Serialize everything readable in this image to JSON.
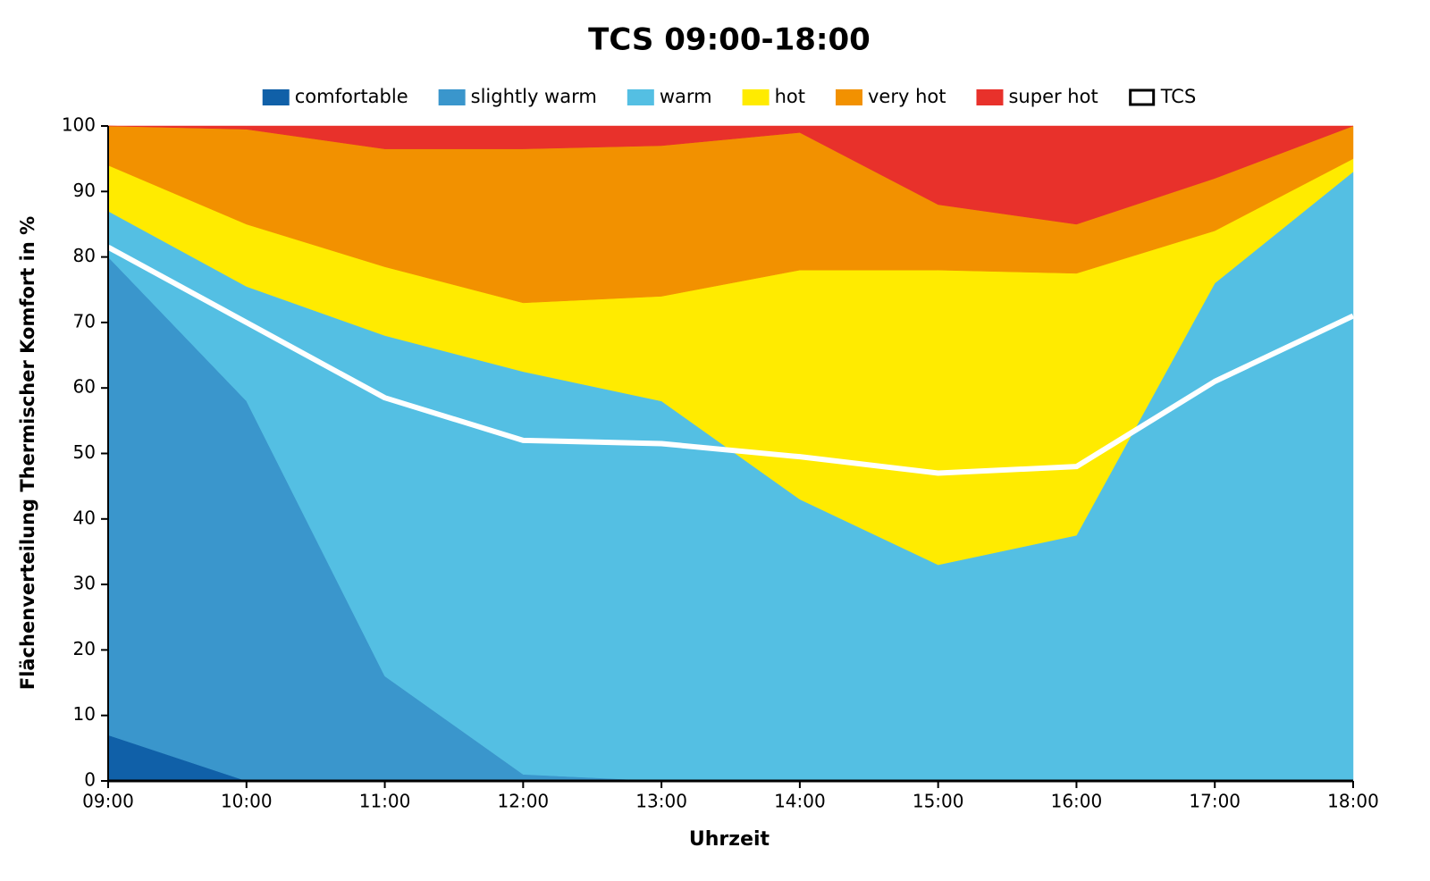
{
  "chart_data": {
    "type": "stacked_area",
    "title": "TCS 09:00-18:00",
    "xlabel": "Uhrzeit",
    "ylabel": "Flächenverteilung Thermischer Komfort in %",
    "categories": [
      "09:00",
      "10:00",
      "11:00",
      "12:00",
      "13:00",
      "14:00",
      "15:00",
      "16:00",
      "17:00",
      "18:00"
    ],
    "series": [
      {
        "name": "comfortable",
        "color": "#1060a8",
        "values": [
          7,
          0,
          0,
          0,
          0,
          0,
          0,
          0,
          0,
          0
        ]
      },
      {
        "name": "slightly warm",
        "color": "#3a96cc",
        "values": [
          73,
          58,
          16,
          1,
          0,
          0,
          0,
          0,
          0,
          0
        ]
      },
      {
        "name": "warm",
        "color": "#54bfe3",
        "values": [
          7,
          17.5,
          52,
          61.5,
          58,
          43,
          33,
          37.5,
          76,
          93
        ]
      },
      {
        "name": "hot",
        "color": "#ffeb00",
        "values": [
          7,
          9.5,
          10.5,
          10.5,
          16,
          35,
          45,
          40,
          8,
          2
        ]
      },
      {
        "name": "very hot",
        "color": "#f29100",
        "values": [
          6,
          14.5,
          18,
          23.5,
          23,
          21,
          10,
          7.5,
          8,
          5
        ]
      },
      {
        "name": "super hot",
        "color": "#e8312b",
        "values": [
          0,
          0.5,
          3.5,
          3.5,
          3,
          1,
          12,
          15,
          8,
          0
        ]
      },
      {
        "name": "TCS",
        "color": "#ffffff",
        "type": "line",
        "values": [
          81.5,
          70,
          58.5,
          52,
          51.5,
          49.5,
          47,
          48,
          61,
          71
        ]
      }
    ],
    "ylim": [
      0,
      100
    ],
    "yticks": [
      0,
      10,
      20,
      30,
      40,
      50,
      60,
      70,
      80,
      90,
      100
    ],
    "legend": "top"
  }
}
